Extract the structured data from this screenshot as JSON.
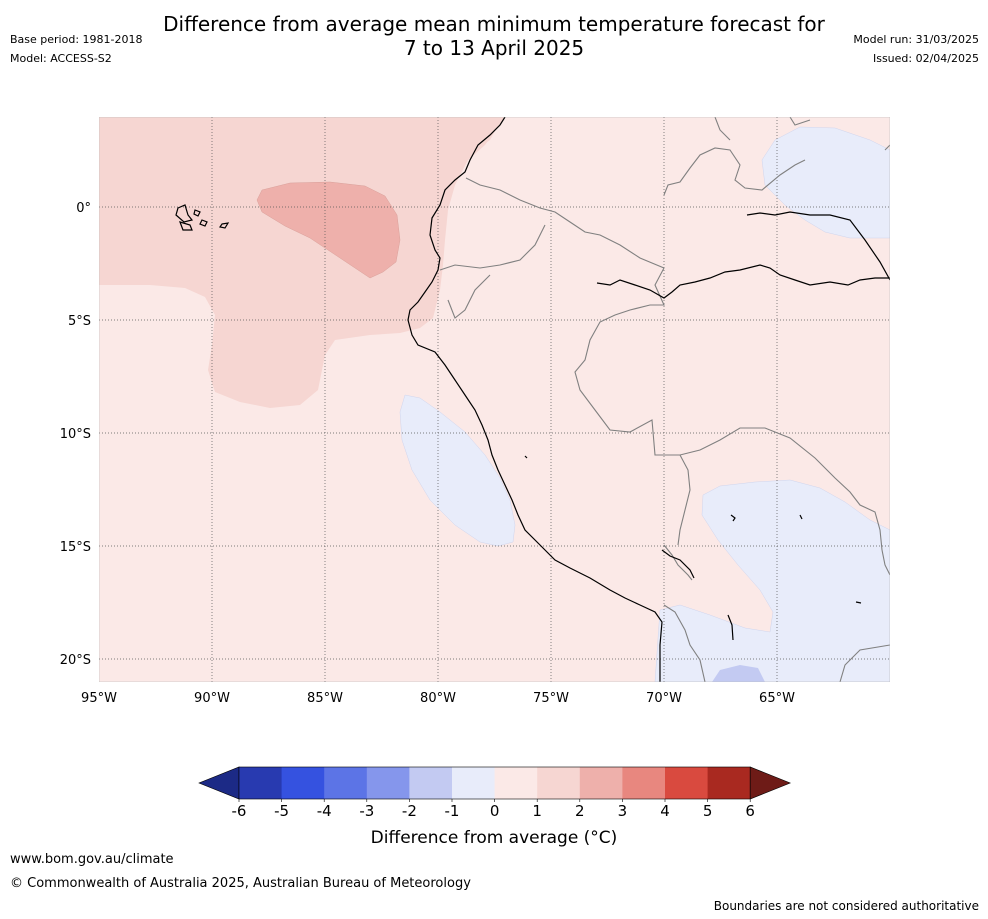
{
  "header": {
    "title_line1": "Difference from average mean minimum temperature forecast for",
    "title_line2": "7 to 13 April 2025",
    "base_period": "Base period: 1981-2018",
    "model": "Model: ACCESS-S2",
    "model_run": "Model run: 31/03/2025",
    "issued": "Issued: 02/04/2025"
  },
  "map": {
    "lon_ticks": [
      "95°W",
      "90°W",
      "85°W",
      "80°W",
      "75°W",
      "70°W",
      "65°W"
    ],
    "lat_ticks": [
      "0°",
      "5°S",
      "10°S",
      "15°S",
      "20°S"
    ],
    "lon_range_deg": [
      -95,
      -60
    ],
    "lat_range_deg": [
      -21,
      4
    ],
    "gridlines": "dotted",
    "regions": [
      {
        "category": "+0 to +1",
        "color": "#fbe9e7"
      },
      {
        "category": "+1 to +2",
        "color": "#f6d6d2"
      },
      {
        "category": "+2 to +3",
        "color": "#eeb0ab"
      },
      {
        "category": "-1 to 0",
        "color": "#e8ecfa"
      },
      {
        "category": "-2 to -1",
        "color": "#c3caf2"
      }
    ]
  },
  "colorbar": {
    "ticks": [
      "-6",
      "-5",
      "-4",
      "-3",
      "-2",
      "-1",
      "0",
      "1",
      "2",
      "3",
      "4",
      "5",
      "6"
    ],
    "colors": [
      "#1c2a86",
      "#283ab0",
      "#3552e0",
      "#5c74e6",
      "#8596ec",
      "#c3caf2",
      "#e8ecfa",
      "#fbe9e7",
      "#f6d6d2",
      "#eeb0ab",
      "#e8877f",
      "#d94a3f",
      "#a92920",
      "#6e1b17"
    ],
    "label": "Difference from average (°C)"
  },
  "footer": {
    "url": "www.bom.gov.au/climate",
    "copyright": "© Commonwealth of Australia 2025, Australian Bureau of Meteorology",
    "disclaimer": "Boundaries are not considered authoritative"
  }
}
